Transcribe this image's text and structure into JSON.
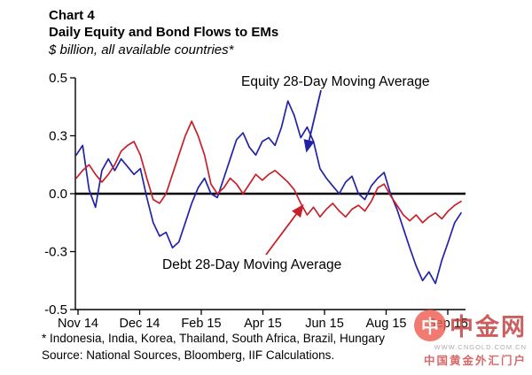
{
  "title": {
    "chart_label": "Chart 4",
    "main": "Daily Equity and Bond Flows to EMs",
    "subtitle": "$ billion, all available countries*"
  },
  "annotations": {
    "equity": "Equity 28-Day Moving Average",
    "debt": "Debt 28-Day Moving Average"
  },
  "footnotes": {
    "line1": "* Indonesia, India, Korea, Thailand, South Africa, Brazil, Hungary",
    "line2": "Source: National Sources, Bloomberg, IIF Calculations."
  },
  "watermark": {
    "logo_char": "中",
    "name": "中金网",
    "url": "WWW.CNGOLD.COM.CN",
    "tagline": "中国黄金外汇门户"
  },
  "colors": {
    "equity": "#2323a8",
    "debt": "#c8202a",
    "axis": "#000000"
  },
  "chart_data": {
    "type": "line",
    "title": "Daily Equity and Bond Flows to EMs",
    "subtitle": "$ billion, all available countries*",
    "ylabel": "$ billion",
    "ylim": [
      -0.5,
      0.5
    ],
    "grid": false,
    "x_tick_labels": [
      "Nov 14",
      "Dec 14",
      "Feb 15",
      "Apr 15",
      "Jun 15",
      "Aug 15",
      "Sep 15"
    ],
    "y_tick_labels": [
      "0.5",
      "0.3",
      "0.0",
      "-0.3",
      "-0.5"
    ],
    "y_tick_values": [
      0.5,
      0.3,
      0.0,
      -0.3,
      -0.5
    ],
    "series": [
      {
        "name": "Equity 28-Day Moving Average",
        "color": "#2323a8",
        "values": [
          0.2,
          0.25,
          0.02,
          -0.07,
          0.12,
          0.18,
          0.12,
          0.18,
          0.14,
          0.1,
          0.13,
          -0.02,
          -0.15,
          -0.22,
          -0.2,
          -0.28,
          -0.25,
          -0.15,
          -0.05,
          0.03,
          0.08,
          0.0,
          -0.02,
          0.08,
          0.18,
          0.28,
          0.31,
          0.24,
          0.2,
          0.27,
          0.29,
          0.25,
          0.33,
          0.42,
          0.37,
          0.29,
          0.33,
          0.27,
          0.13,
          0.08,
          0.04,
          0.0,
          0.06,
          0.09,
          0.0,
          -0.03,
          0.04,
          0.08,
          0.11,
          0.0,
          -0.08,
          -0.18,
          -0.28,
          -0.35,
          -0.4,
          -0.37,
          -0.41,
          -0.33,
          -0.25,
          -0.15,
          -0.1
        ]
      },
      {
        "name": "Debt 28-Day Moving Average",
        "color": "#c8202a",
        "values": [
          0.08,
          0.12,
          0.15,
          0.1,
          0.06,
          0.1,
          0.15,
          0.22,
          0.25,
          0.27,
          0.2,
          0.08,
          -0.03,
          -0.05,
          0.0,
          0.1,
          0.2,
          0.3,
          0.35,
          0.3,
          0.2,
          0.05,
          0.0,
          0.03,
          0.08,
          0.05,
          0.0,
          0.05,
          0.1,
          0.07,
          0.1,
          0.12,
          0.09,
          0.06,
          0.02,
          -0.05,
          -0.11,
          -0.07,
          -0.12,
          -0.08,
          -0.05,
          -0.09,
          -0.12,
          -0.08,
          -0.06,
          -0.09,
          -0.04,
          0.03,
          0.05,
          -0.01,
          -0.06,
          -0.11,
          -0.14,
          -0.11,
          -0.15,
          -0.12,
          -0.1,
          -0.13,
          -0.09,
          -0.06,
          -0.04
        ]
      }
    ]
  }
}
